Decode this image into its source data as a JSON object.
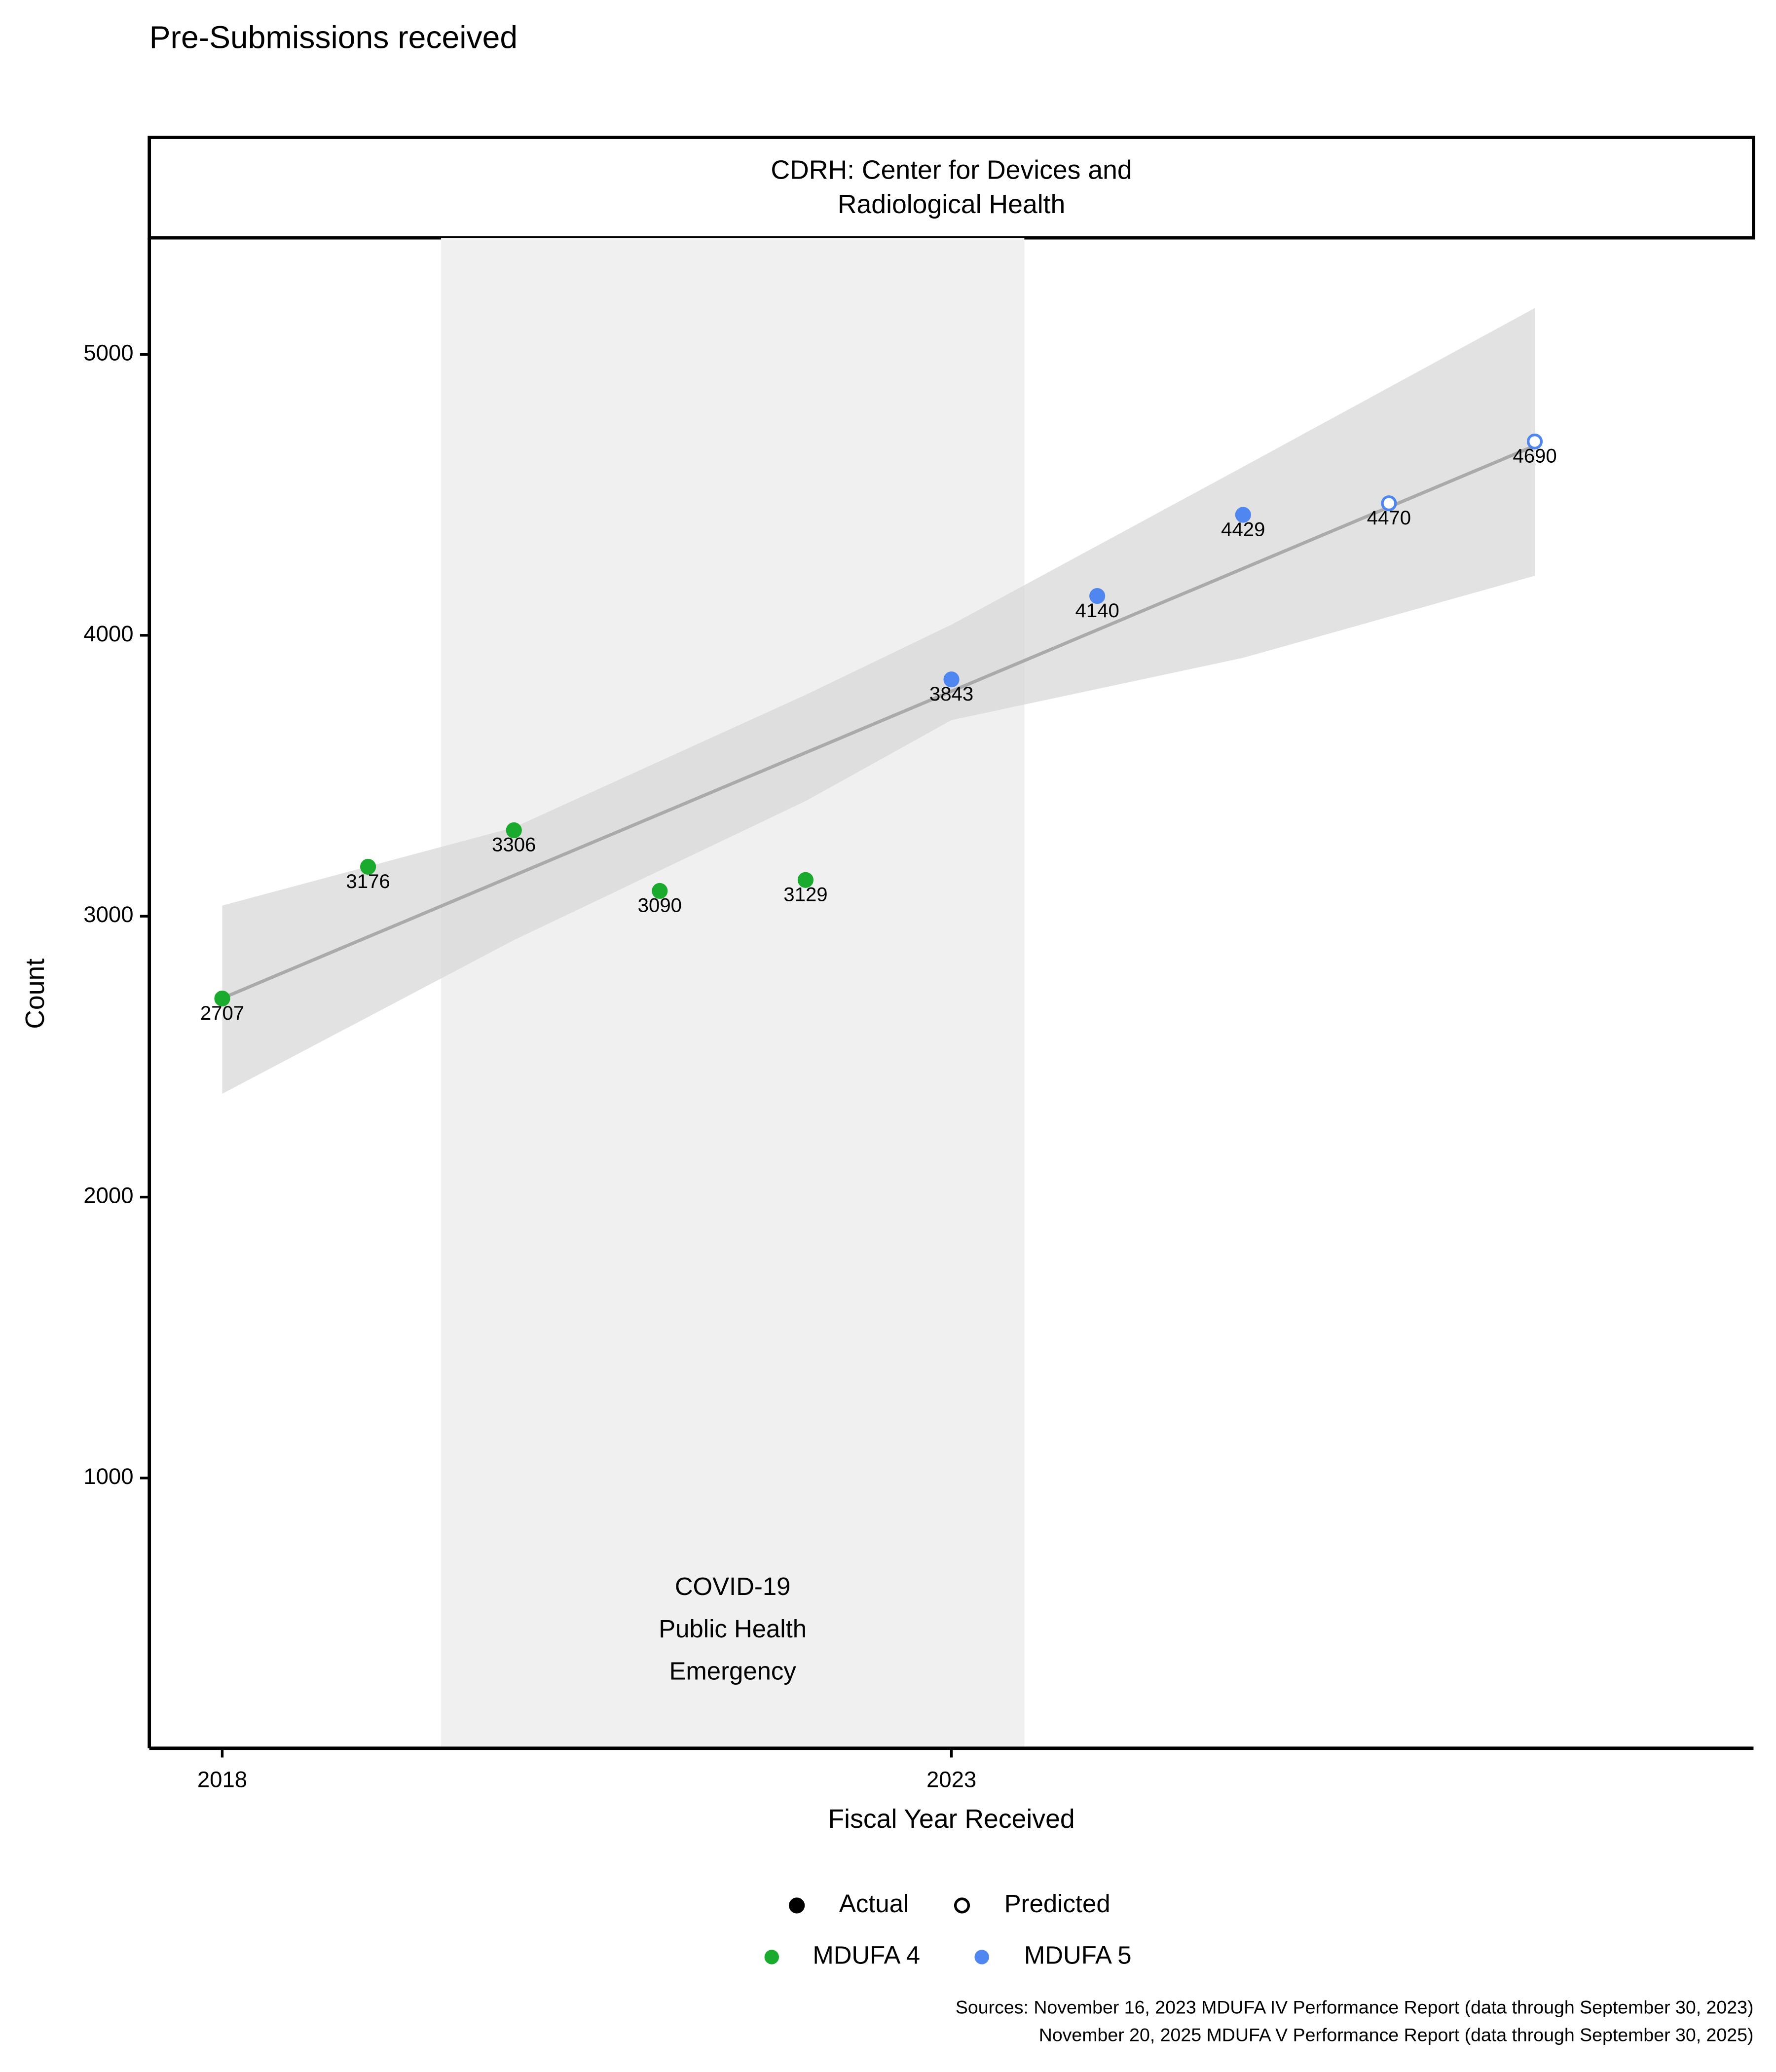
{
  "chart_data": {
    "type": "scatter",
    "title": "Pre-Submissions received",
    "facet_label": [
      "CDRH: Center for Devices and",
      "Radiological Health"
    ],
    "x_label": "Fiscal Year Received",
    "y_label": "Count",
    "xlim": [
      2017.5,
      2028.5
    ],
    "ylim": [
      38,
      5415
    ],
    "xticks": [
      2018,
      2023
    ],
    "yticks": [
      1000,
      2000,
      3000,
      4000,
      5000
    ],
    "grid": false,
    "shaded_region": {
      "xlim": [
        2019.5,
        2023.5
      ],
      "color": "#f0f0f0",
      "label": [
        "COVID-19",
        "Public Health",
        "Emergency"
      ]
    },
    "trend": {
      "x": [
        2018,
        2027
      ],
      "values": [
        2708,
        4675
      ],
      "color": "#aaaaaa"
    },
    "band": {
      "x": [
        2018,
        2020,
        2022,
        2023,
        2025,
        2027
      ],
      "upper": [
        3038,
        3316,
        3788,
        4038,
        4600,
        5165
      ],
      "lower": [
        2368,
        2915,
        3410,
        3698,
        3920,
        4212
      ],
      "color": "#d6d6d6"
    },
    "shape_legend": [
      "Actual",
      "Predicted"
    ],
    "series": [
      {
        "name": "MDUFA 4",
        "color": "#1aaa2e",
        "x": [
          2018,
          2019,
          2020,
          2021,
          2022
        ],
        "values": [
          2707,
          3176,
          3306,
          3090,
          3129
        ],
        "predicted": [
          false,
          false,
          false,
          false,
          false
        ]
      },
      {
        "name": "MDUFA 5",
        "color": "#4f86f0",
        "x": [
          2023,
          2024,
          2025,
          2026,
          2027
        ],
        "values": [
          3843,
          4140,
          4429,
          4470,
          4690
        ],
        "predicted": [
          false,
          false,
          false,
          true,
          true
        ]
      }
    ],
    "sources": [
      "Sources: November 16, 2023 MDUFA IV Performance Report (data through September 30, 2023)",
      "November 20, 2025 MDUFA V Performance Report (data through September 30, 2025)"
    ]
  }
}
